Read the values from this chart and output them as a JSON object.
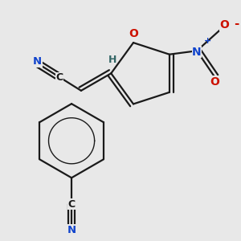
{
  "bg_color": "#e8e8e8",
  "bond_color": "#1a1a1a",
  "bond_width": 1.6,
  "figsize": [
    3.0,
    3.0
  ],
  "dpi": 100,
  "colors": {
    "N": "#1144cc",
    "O": "#cc1100",
    "C": "#1a1a1a",
    "H": "#336666"
  },
  "xlim": [
    0.0,
    1.0
  ],
  "ylim": [
    0.0,
    1.0
  ]
}
